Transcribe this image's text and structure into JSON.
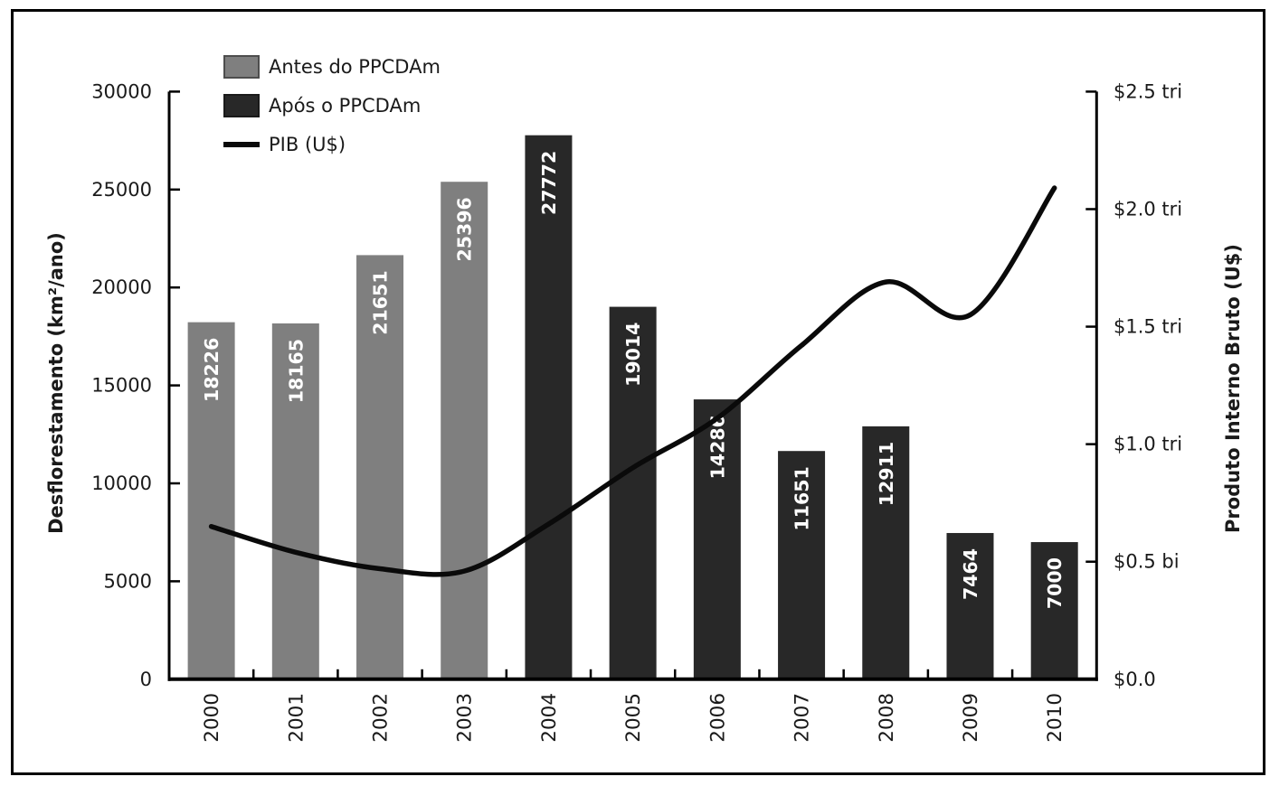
{
  "figure": {
    "background": "#ffffff",
    "border_color": "#000000"
  },
  "legend": {
    "items": [
      {
        "id": "antes",
        "label": "Antes do PPCDAm",
        "swatch": "gray-rect",
        "color": "#7f7f7f",
        "border": "#4d4d4d"
      },
      {
        "id": "apos",
        "label": "Após o PPCDAm",
        "swatch": "dark-rect",
        "color": "#282828",
        "border": "#1a1a1a"
      },
      {
        "id": "pib",
        "label": "PIB (U$)",
        "swatch": "line",
        "color": "#0a0a0a",
        "border": "#0a0a0a"
      }
    ]
  },
  "chart_data": {
    "type": "combo-bar-line",
    "categories": [
      "2000",
      "2001",
      "2002",
      "2003",
      "2004",
      "2005",
      "2006",
      "2007",
      "2008",
      "2009",
      "2010"
    ],
    "series": [
      {
        "name": "Antes do PPCDAm",
        "type": "bar",
        "axis": "left",
        "color": "#7f7f7f",
        "values": [
          18226,
          18165,
          21651,
          25396,
          null,
          null,
          null,
          null,
          null,
          null,
          null
        ]
      },
      {
        "name": "Após o PPCDAm",
        "type": "bar",
        "axis": "left",
        "color": "#282828",
        "values": [
          null,
          null,
          null,
          null,
          27772,
          19014,
          14286,
          11651,
          12911,
          7464,
          7000
        ]
      },
      {
        "name": "PIB (U$)",
        "type": "line",
        "axis": "right",
        "color": "#0a0a0a",
        "unit": "trillions USD (read from right axis)",
        "values": [
          0.65,
          0.54,
          0.47,
          0.46,
          0.66,
          0.9,
          1.11,
          1.42,
          1.69,
          1.55,
          2.09
        ]
      }
    ],
    "bar_value_labels": [
      18226,
      18165,
      21651,
      25396,
      27772,
      19014,
      14286,
      11651,
      12911,
      7464,
      7000
    ],
    "bar_label_color": "#ffffff",
    "left_axis": {
      "title": "Desflorestamento (km²/ano)",
      "min": 0,
      "max": 30000,
      "tick_values": [
        0,
        5000,
        10000,
        15000,
        20000,
        25000,
        30000
      ],
      "tick_labels": [
        "0",
        "5000",
        "10000",
        "15000",
        "20000",
        "25000",
        "30000"
      ]
    },
    "right_axis": {
      "title": "Produto Interno Bruto (U$)",
      "min": 0,
      "max": 2.5,
      "tick_values": [
        0,
        0.5,
        1.0,
        1.5,
        2.0,
        2.5
      ],
      "tick_labels": [
        "$0.0",
        "$0.5 bi",
        "$1.0 tri",
        "$1.5 tri",
        "$2.0 tri",
        "$2.5 tri"
      ]
    },
    "x_axis": {
      "label_rotation_deg": -90
    },
    "grid": false,
    "legend_position": "top-left-inside"
  }
}
